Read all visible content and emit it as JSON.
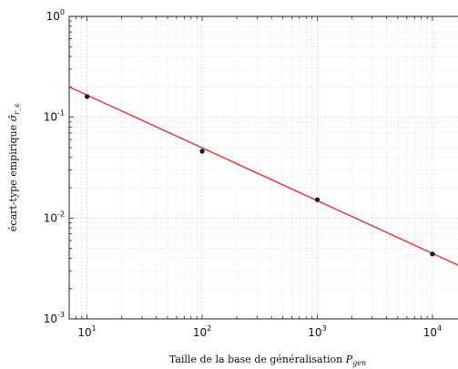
{
  "chart_data": {
    "type": "scatter",
    "x_scale": "log",
    "y_scale": "log",
    "xlim": [
      7,
      20000
    ],
    "ylim": [
      0.001,
      1
    ],
    "grid": true,
    "xlabel": "Taille de la base de généralisation",
    "xlabel_var": "P",
    "xlabel_sub": "gen",
    "ylabel": "écart-type empirique",
    "ylabel_var": "σ̂",
    "ylabel_sub": "r_s",
    "x_ticks": [
      {
        "value": 10,
        "base": "10",
        "exp": "1"
      },
      {
        "value": 100,
        "base": "10",
        "exp": "2"
      },
      {
        "value": 1000,
        "base": "10",
        "exp": "3"
      },
      {
        "value": 10000,
        "base": "10",
        "exp": "4"
      }
    ],
    "y_ticks": [
      {
        "value": 0.001,
        "base": "10",
        "exp": "-3"
      },
      {
        "value": 0.01,
        "base": "10",
        "exp": "-2"
      },
      {
        "value": 0.1,
        "base": "10",
        "exp": "-1"
      },
      {
        "value": 1,
        "base": "10",
        "exp": "0"
      }
    ],
    "series": [
      {
        "kind": "points",
        "color": "#111111",
        "x": [
          10,
          100,
          1000,
          10000
        ],
        "y": [
          0.16,
          0.046,
          0.0152,
          0.0044
        ]
      },
      {
        "kind": "fit-line",
        "color": "#e53030",
        "x": [
          7,
          20000
        ],
        "y": [
          0.2,
          0.0031
        ]
      }
    ]
  }
}
